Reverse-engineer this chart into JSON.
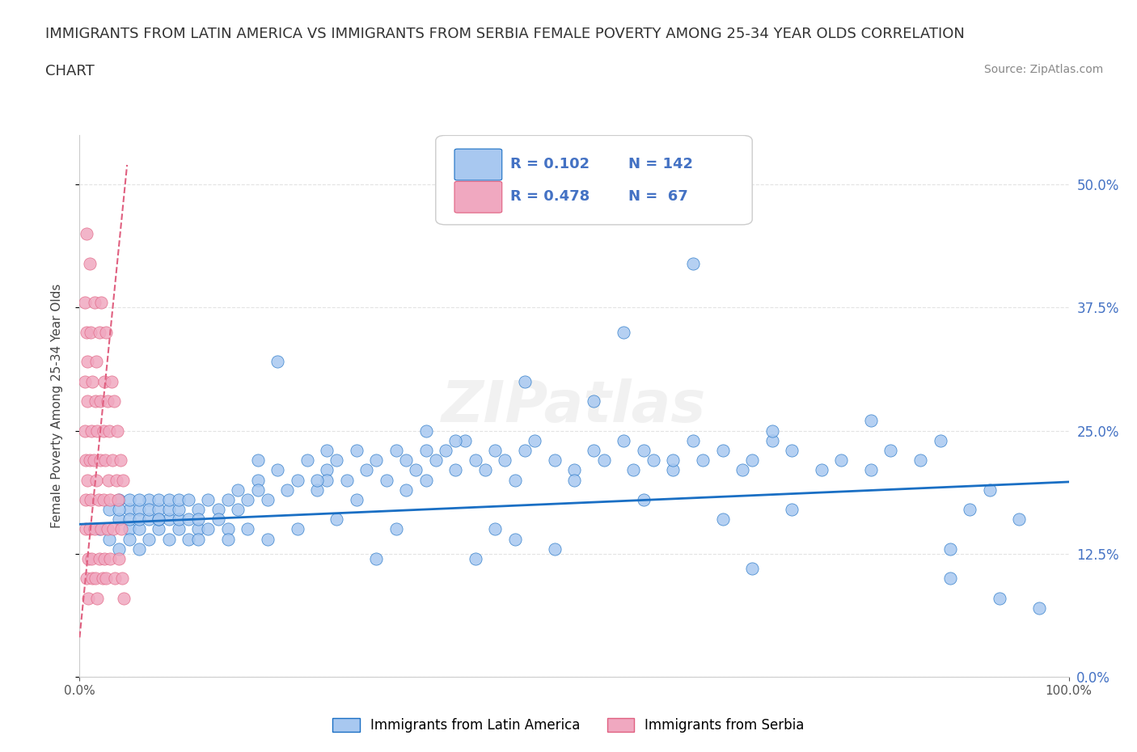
{
  "title_line1": "IMMIGRANTS FROM LATIN AMERICA VS IMMIGRANTS FROM SERBIA FEMALE POVERTY AMONG 25-34 YEAR OLDS CORRELATION",
  "title_line2": "CHART",
  "source": "Source: ZipAtlas.com",
  "ylabel": "Female Poverty Among 25-34 Year Olds",
  "xlim": [
    0.0,
    1.0
  ],
  "ylim": [
    0.0,
    0.55
  ],
  "yticks": [
    0.0,
    0.125,
    0.25,
    0.375,
    0.5
  ],
  "ytick_labels": [
    "0.0%",
    "12.5%",
    "25.0%",
    "37.5%",
    "50.0%"
  ],
  "xticks": [
    0.0,
    1.0
  ],
  "xtick_labels": [
    "0.0%",
    "100.0%"
  ],
  "legend1_R": "0.102",
  "legend1_N": "142",
  "legend2_R": "0.478",
  "legend2_N": "67",
  "color_blue": "#a8c8f0",
  "color_pink": "#f0a8c0",
  "line_blue": "#1a6fc4",
  "line_pink": "#e06080",
  "watermark": "ZIPatlas",
  "blue_scatter_x": [
    0.02,
    0.03,
    0.03,
    0.04,
    0.04,
    0.04,
    0.05,
    0.05,
    0.05,
    0.05,
    0.05,
    0.06,
    0.06,
    0.06,
    0.06,
    0.07,
    0.07,
    0.07,
    0.07,
    0.08,
    0.08,
    0.08,
    0.08,
    0.09,
    0.09,
    0.09,
    0.09,
    0.1,
    0.1,
    0.1,
    0.1,
    0.11,
    0.11,
    0.11,
    0.12,
    0.12,
    0.12,
    0.13,
    0.13,
    0.14,
    0.14,
    0.15,
    0.15,
    0.16,
    0.17,
    0.18,
    0.18,
    0.19,
    0.2,
    0.21,
    0.22,
    0.23,
    0.24,
    0.25,
    0.25,
    0.26,
    0.27,
    0.28,
    0.29,
    0.3,
    0.31,
    0.32,
    0.33,
    0.34,
    0.35,
    0.35,
    0.36,
    0.37,
    0.38,
    0.39,
    0.4,
    0.41,
    0.42,
    0.43,
    0.44,
    0.45,
    0.46,
    0.48,
    0.5,
    0.52,
    0.53,
    0.55,
    0.56,
    0.57,
    0.58,
    0.6,
    0.62,
    0.63,
    0.65,
    0.67,
    0.68,
    0.7,
    0.72,
    0.75,
    0.77,
    0.8,
    0.82,
    0.85,
    0.87,
    0.88,
    0.9,
    0.92,
    0.93,
    0.95,
    0.97,
    0.7,
    0.55,
    0.45,
    0.25,
    0.35,
    0.42,
    0.52,
    0.3,
    0.28,
    0.15,
    0.2,
    0.6,
    0.38,
    0.48,
    0.65,
    0.8,
    0.5,
    0.57,
    0.22,
    0.62,
    0.33,
    0.44,
    0.72,
    0.18,
    0.26,
    0.88,
    0.4,
    0.68,
    0.32,
    0.12,
    0.08,
    0.06,
    0.04,
    0.16,
    0.24,
    0.17,
    0.19
  ],
  "blue_scatter_y": [
    0.15,
    0.17,
    0.14,
    0.16,
    0.18,
    0.13,
    0.17,
    0.15,
    0.16,
    0.14,
    0.18,
    0.15,
    0.17,
    0.16,
    0.13,
    0.16,
    0.18,
    0.14,
    0.17,
    0.15,
    0.16,
    0.17,
    0.18,
    0.14,
    0.16,
    0.17,
    0.18,
    0.15,
    0.16,
    0.17,
    0.18,
    0.14,
    0.16,
    0.18,
    0.15,
    0.17,
    0.16,
    0.18,
    0.15,
    0.17,
    0.16,
    0.18,
    0.15,
    0.17,
    0.18,
    0.2,
    0.19,
    0.18,
    0.21,
    0.19,
    0.2,
    0.22,
    0.19,
    0.23,
    0.21,
    0.22,
    0.2,
    0.23,
    0.21,
    0.22,
    0.2,
    0.23,
    0.22,
    0.21,
    0.23,
    0.2,
    0.22,
    0.23,
    0.21,
    0.24,
    0.22,
    0.21,
    0.23,
    0.22,
    0.2,
    0.23,
    0.24,
    0.22,
    0.21,
    0.23,
    0.22,
    0.24,
    0.21,
    0.23,
    0.22,
    0.21,
    0.24,
    0.22,
    0.23,
    0.21,
    0.22,
    0.24,
    0.23,
    0.21,
    0.22,
    0.21,
    0.23,
    0.22,
    0.24,
    0.1,
    0.17,
    0.19,
    0.08,
    0.16,
    0.07,
    0.25,
    0.35,
    0.3,
    0.2,
    0.25,
    0.15,
    0.28,
    0.12,
    0.18,
    0.14,
    0.32,
    0.22,
    0.24,
    0.13,
    0.16,
    0.26,
    0.2,
    0.18,
    0.15,
    0.42,
    0.19,
    0.14,
    0.17,
    0.22,
    0.16,
    0.13,
    0.12,
    0.11,
    0.15,
    0.14,
    0.16,
    0.18,
    0.17,
    0.19,
    0.2,
    0.15,
    0.14
  ],
  "pink_scatter_x": [
    0.005,
    0.005,
    0.005,
    0.006,
    0.006,
    0.006,
    0.007,
    0.007,
    0.007,
    0.008,
    0.008,
    0.008,
    0.009,
    0.009,
    0.01,
    0.01,
    0.01,
    0.011,
    0.011,
    0.012,
    0.012,
    0.013,
    0.013,
    0.014,
    0.015,
    0.015,
    0.016,
    0.016,
    0.017,
    0.017,
    0.018,
    0.018,
    0.019,
    0.02,
    0.02,
    0.021,
    0.021,
    0.022,
    0.022,
    0.023,
    0.024,
    0.024,
    0.025,
    0.025,
    0.026,
    0.027,
    0.027,
    0.028,
    0.028,
    0.029,
    0.03,
    0.031,
    0.031,
    0.032,
    0.033,
    0.034,
    0.035,
    0.036,
    0.037,
    0.038,
    0.039,
    0.04,
    0.041,
    0.042,
    0.043,
    0.044,
    0.045
  ],
  "pink_scatter_y": [
    0.38,
    0.3,
    0.25,
    0.22,
    0.18,
    0.15,
    0.45,
    0.35,
    0.1,
    0.28,
    0.2,
    0.32,
    0.12,
    0.08,
    0.42,
    0.22,
    0.15,
    0.35,
    0.18,
    0.25,
    0.12,
    0.3,
    0.1,
    0.22,
    0.38,
    0.15,
    0.28,
    0.1,
    0.32,
    0.2,
    0.25,
    0.08,
    0.18,
    0.35,
    0.12,
    0.28,
    0.22,
    0.15,
    0.38,
    0.1,
    0.25,
    0.18,
    0.3,
    0.12,
    0.22,
    0.35,
    0.1,
    0.28,
    0.15,
    0.2,
    0.25,
    0.18,
    0.12,
    0.3,
    0.22,
    0.15,
    0.28,
    0.1,
    0.2,
    0.25,
    0.18,
    0.12,
    0.22,
    0.15,
    0.1,
    0.2,
    0.08
  ],
  "blue_trend_x": [
    0.0,
    1.0
  ],
  "blue_trend_y_start": 0.155,
  "blue_trend_y_end": 0.198,
  "pink_trend_x": [
    0.0,
    0.048
  ],
  "pink_trend_y_start": 0.04,
  "pink_trend_y_end": 0.52,
  "background_color": "#ffffff",
  "grid_color": "#dddddd",
  "title_color": "#333333",
  "axis_label_color": "#444444",
  "tick_label_color_right": "#4472c4",
  "legend_R_color": "#4472c4",
  "legend_N_color": "#4472c4"
}
